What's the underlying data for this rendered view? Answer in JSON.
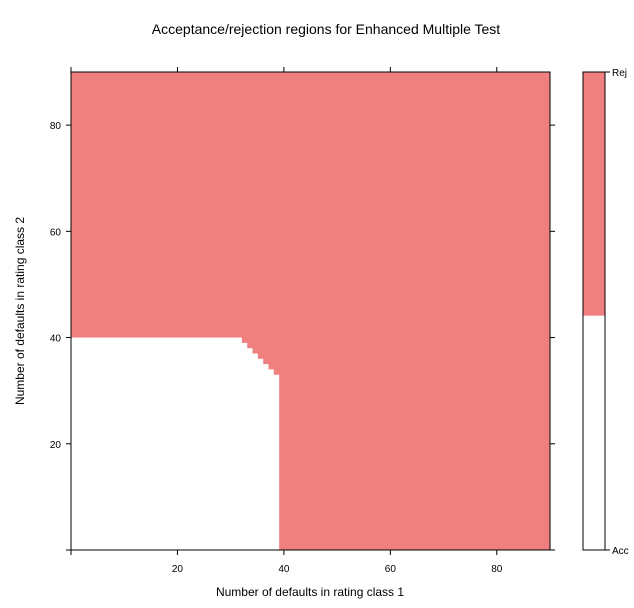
{
  "chart_data": {
    "type": "heatmap",
    "title": "Acceptance/rejection regions for Enhanced Multiple Test",
    "xlabel": "Number of defaults in rating class 1",
    "ylabel": "Number of defaults in rating class 2",
    "xlim": [
      0,
      90
    ],
    "ylim": [
      0,
      90
    ],
    "x_ticks": [
      20,
      40,
      60,
      80
    ],
    "y_ticks": [
      20,
      40,
      60,
      80
    ],
    "x_tick_labels": [
      "20",
      "40",
      "60",
      "80"
    ],
    "y_tick_labels": [
      "20",
      "40",
      "60",
      "80"
    ],
    "grid": false,
    "colors": {
      "reject": "#f08080",
      "accept": "#ffffff"
    },
    "regions": [
      {
        "name": "Rej",
        "color": "#f08080"
      },
      {
        "name": "Acc",
        "color": "#ffffff"
      }
    ],
    "acceptance_region": {
      "description_boundary": "max defaults in class 2 accepted, by defaults in class 1",
      "boundary": [
        {
          "x_from": 0,
          "x_to": 32,
          "y_max": 40
        },
        {
          "x_from": 32,
          "x_to": 33,
          "y_max": 39
        },
        {
          "x_from": 33,
          "x_to": 34,
          "y_max": 38
        },
        {
          "x_from": 34,
          "x_to": 35,
          "y_max": 37
        },
        {
          "x_from": 35,
          "x_to": 36,
          "y_max": 36
        },
        {
          "x_from": 36,
          "x_to": 37,
          "y_max": 35
        },
        {
          "x_from": 37,
          "x_to": 38,
          "y_max": 34
        },
        {
          "x_from": 38,
          "x_to": 39,
          "y_max": 33
        }
      ]
    },
    "colorkey": {
      "position": "right",
      "labels": [
        "Rej",
        "Acc"
      ],
      "reject_fraction": 0.51
    }
  }
}
